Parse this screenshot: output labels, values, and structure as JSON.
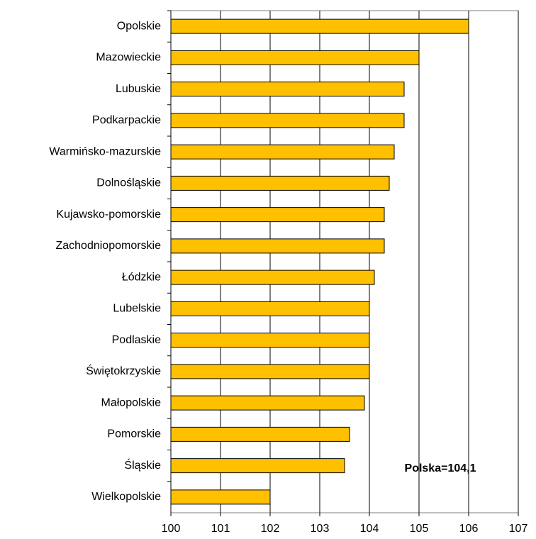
{
  "chart_data": {
    "type": "barh",
    "categories": [
      "Opolskie",
      "Mazowieckie",
      "Lubuskie",
      "Podkarpackie",
      "Warmińsko-mazurskie",
      "Dolnośląskie",
      "Kujawsko-pomorskie",
      "Zachodniopomorskie",
      "Łódzkie",
      "Lubelskie",
      "Podlaskie",
      "Świętokrzyskie",
      "Małopolskie",
      "Pomorskie",
      "Śląskie",
      "Wielkopolskie"
    ],
    "values": [
      106.0,
      105.0,
      104.7,
      104.7,
      104.5,
      104.4,
      104.3,
      104.3,
      104.1,
      104.0,
      104.0,
      104.0,
      103.9,
      103.6,
      103.5,
      102.0
    ],
    "color": "#FFC000",
    "xlim": [
      100,
      107
    ],
    "xticks": [
      100,
      101,
      102,
      103,
      104,
      105,
      106,
      107
    ],
    "grid": true,
    "annotation": "Polska=104,1"
  }
}
